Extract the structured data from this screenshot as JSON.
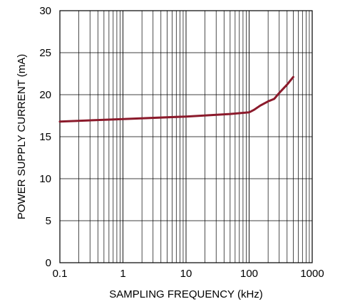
{
  "chart_data": {
    "type": "line",
    "title": "",
    "xlabel": "SAMPLING FREQUENCY (kHz)",
    "ylabel": "POWER SUPPLY CURRENT (mA)",
    "xscale": "log",
    "xlim": [
      0.1,
      1000
    ],
    "ylim": [
      0,
      30
    ],
    "grid": true,
    "x_ticks": [
      0.1,
      1,
      10,
      100,
      1000
    ],
    "x_tick_labels": [
      "0.1",
      "1",
      "10",
      "100",
      "1000"
    ],
    "y_ticks": [
      0,
      5,
      10,
      15,
      20,
      25,
      30
    ],
    "y_tick_labels": [
      "0",
      "5",
      "10",
      "15",
      "20",
      "25",
      "30"
    ],
    "series_color": "#8B1A2B",
    "series": [
      {
        "x": [
          0.1,
          1,
          10,
          50,
          100,
          120,
          150,
          200,
          250,
          300,
          400,
          500
        ],
        "y": [
          16.8,
          17.1,
          17.4,
          17.7,
          17.9,
          18.2,
          18.7,
          19.2,
          19.5,
          20.2,
          21.2,
          22.1
        ]
      }
    ]
  }
}
